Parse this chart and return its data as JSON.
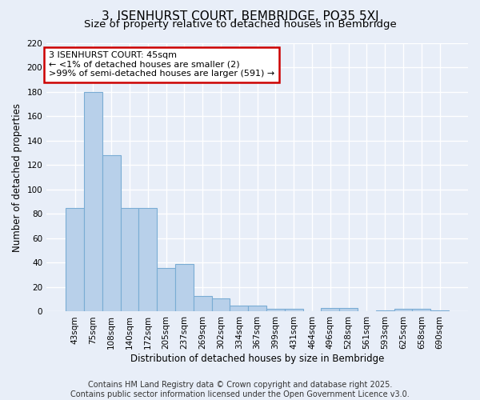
{
  "title": "3, ISENHURST COURT, BEMBRIDGE, PO35 5XJ",
  "subtitle": "Size of property relative to detached houses in Bembridge",
  "xlabel": "Distribution of detached houses by size in Bembridge",
  "ylabel": "Number of detached properties",
  "categories": [
    "43sqm",
    "75sqm",
    "108sqm",
    "140sqm",
    "172sqm",
    "205sqm",
    "237sqm",
    "269sqm",
    "302sqm",
    "334sqm",
    "367sqm",
    "399sqm",
    "431sqm",
    "464sqm",
    "496sqm",
    "528sqm",
    "561sqm",
    "593sqm",
    "625sqm",
    "658sqm",
    "690sqm"
  ],
  "values": [
    85,
    180,
    128,
    85,
    85,
    36,
    39,
    13,
    11,
    5,
    5,
    2,
    2,
    0,
    3,
    3,
    0,
    1,
    2,
    2,
    1
  ],
  "bar_color": "#b8d0ea",
  "bar_edge_color": "#7aacd4",
  "annotation_box_text": "3 ISENHURST COURT: 45sqm\n← <1% of detached houses are smaller (2)\n>99% of semi-detached houses are larger (591) →",
  "annotation_box_color": "#ffffff",
  "annotation_box_edge_color": "#cc0000",
  "ylim": [
    0,
    220
  ],
  "yticks": [
    0,
    20,
    40,
    60,
    80,
    100,
    120,
    140,
    160,
    180,
    200,
    220
  ],
  "background_color": "#e8eef8",
  "grid_color": "#ffffff",
  "footer_text": "Contains HM Land Registry data © Crown copyright and database right 2025.\nContains public sector information licensed under the Open Government Licence v3.0.",
  "title_fontsize": 11,
  "subtitle_fontsize": 9.5,
  "xlabel_fontsize": 8.5,
  "ylabel_fontsize": 8.5,
  "tick_fontsize": 7.5,
  "annotation_fontsize": 8,
  "footer_fontsize": 7
}
